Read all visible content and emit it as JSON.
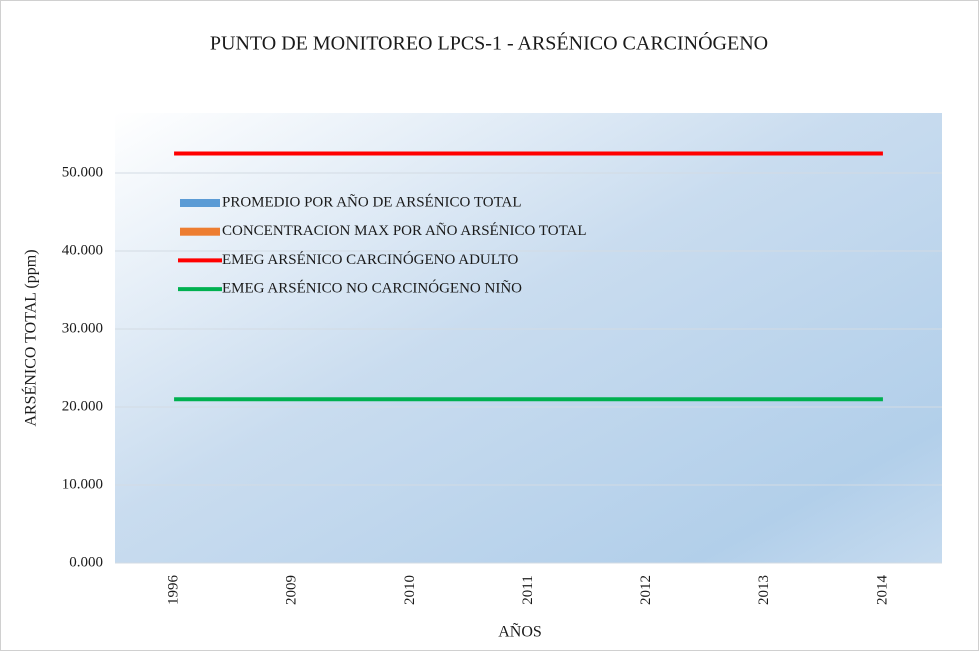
{
  "chart_data": {
    "type": "combo",
    "title": "PUNTO DE MONITOREO LPCS-1 - ARSÉNICO CARCINÓGENO",
    "x_label": "AÑOS",
    "y_label": "ARSÉNICO TOTAL  (ppm)",
    "categories": [
      "1996",
      "2009",
      "2010",
      "2011",
      "2012",
      "2013",
      "2014"
    ],
    "series": [
      {
        "name": "PROMEDIO POR AÑO DE ARSÉNICO TOTAL",
        "type": "bar",
        "color": "#5b9bd5",
        "values": [
          null,
          null,
          null,
          null,
          null,
          null,
          null
        ]
      },
      {
        "name": "CONCENTRACION MAX POR AÑO ARSÉNICO TOTAL",
        "type": "bar",
        "color": "#ed7d31",
        "values": [
          null,
          null,
          null,
          null,
          null,
          null,
          null
        ]
      },
      {
        "name": "EMEG ARSÉNICO CARCINÓGENO ADULTO",
        "type": "line",
        "color": "#ff0000",
        "values": [
          52.5,
          52.5,
          52.5,
          52.5,
          52.5,
          52.5,
          52.5
        ]
      },
      {
        "name": "EMEG ARSÉNICO NO CARCINÓGENO NIÑO",
        "type": "line",
        "color": "#00b050",
        "values": [
          21.0,
          21.0,
          21.0,
          21.0,
          21.0,
          21.0,
          21.0
        ]
      }
    ],
    "ylim": [
      0,
      57.7
    ],
    "yticks": [
      {
        "value": 0,
        "label": "0.000"
      },
      {
        "value": 10,
        "label": "10.000"
      },
      {
        "value": 20,
        "label": "20.000"
      },
      {
        "value": 30,
        "label": "30.000"
      },
      {
        "value": 40,
        "label": "40.000"
      },
      {
        "value": 50,
        "label": "50.000"
      }
    ],
    "grid": true,
    "legend": "top-left"
  }
}
